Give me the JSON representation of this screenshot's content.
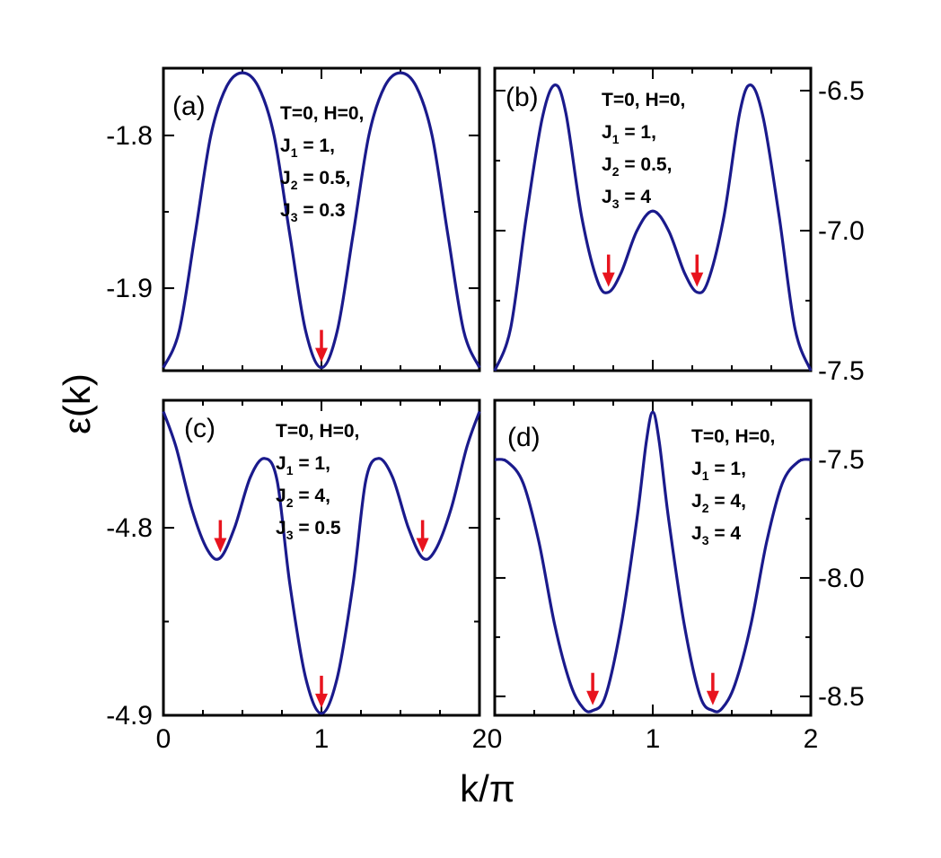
{
  "figure": {
    "ylabel": "ε(k)",
    "xlabel": "k/π",
    "curve_color": "#1a1a8c",
    "arrow_color": "#e8141e"
  },
  "chart_data": [
    {
      "type": "line",
      "panel": "(a)",
      "xlim": [
        0,
        2
      ],
      "ylim": [
        -1.954,
        -1.756
      ],
      "yticks": [
        -1.8,
        -1.9
      ],
      "ytick_labels": [
        "-1.8",
        "-1.9"
      ],
      "xticks": [
        0,
        1,
        2
      ],
      "xtick_labels": [
        "0",
        "1",
        "2"
      ],
      "params": [
        "T=0, H=0,",
        "J|1| = 1,",
        "J|2| = 0.5,",
        "J|3| = 0.3"
      ],
      "series": [
        {
          "x": [
            0,
            0.1,
            0.2,
            0.3,
            0.4,
            0.5,
            0.6,
            0.7,
            0.8,
            0.9,
            1.0,
            1.1,
            1.2,
            1.3,
            1.4,
            1.5,
            1.6,
            1.7,
            1.8,
            1.9,
            2.0
          ],
          "y": [
            -1.952,
            -1.928,
            -1.865,
            -1.8,
            -1.768,
            -1.759,
            -1.768,
            -1.8,
            -1.865,
            -1.928,
            -1.952,
            -1.928,
            -1.865,
            -1.8,
            -1.768,
            -1.759,
            -1.768,
            -1.8,
            -1.865,
            -1.928,
            -1.952
          ]
        }
      ],
      "minima_arrows": [
        1.0
      ]
    },
    {
      "type": "line",
      "panel": "(b)",
      "xlim": [
        0,
        2
      ],
      "ylim": [
        -7.5,
        -6.42
      ],
      "yticks": [
        -6.5,
        -7.0,
        -7.5
      ],
      "ytick_labels": [
        "-6.5",
        "-7.0",
        "-7.5"
      ],
      "xticks": [
        0,
        1,
        2
      ],
      "xtick_labels": [
        "0",
        "1",
        "2"
      ],
      "params": [
        "T=0, H=0,",
        "J|1| = 1,",
        "J|2| = 0.5,",
        "J|3| = 4"
      ],
      "series": [
        {
          "x": [
            0,
            0.1,
            0.2,
            0.3,
            0.38,
            0.45,
            0.55,
            0.65,
            0.72,
            0.8,
            0.9,
            1.0,
            1.1,
            1.2,
            1.28,
            1.35,
            1.45,
            1.55,
            1.62,
            1.7,
            1.8,
            1.9,
            2.0
          ],
          "y": [
            -7.5,
            -7.35,
            -6.95,
            -6.6,
            -6.48,
            -6.58,
            -6.95,
            -7.18,
            -7.22,
            -7.15,
            -7.0,
            -6.93,
            -7.0,
            -7.15,
            -7.22,
            -7.18,
            -6.95,
            -6.58,
            -6.48,
            -6.6,
            -6.95,
            -7.35,
            -7.5
          ]
        }
      ],
      "minima_arrows": [
        0.72,
        1.28
      ]
    },
    {
      "type": "line",
      "panel": "(c)",
      "xlim": [
        0,
        2
      ],
      "ylim": [
        -4.9,
        -4.732
      ],
      "yticks": [
        -4.8,
        -4.9
      ],
      "ytick_labels": [
        "-4.8",
        "-4.9"
      ],
      "xticks": [
        0,
        1,
        2
      ],
      "xtick_labels": [
        "0",
        "1",
        "2"
      ],
      "params": [
        "T=0, H=0,",
        "J|1| = 1,",
        "J|2| = 4,",
        "J|3| = 0.5"
      ],
      "series": [
        {
          "x": [
            0,
            0.08,
            0.18,
            0.28,
            0.36,
            0.45,
            0.55,
            0.64,
            0.72,
            0.8,
            0.9,
            1.0,
            1.1,
            1.2,
            1.28,
            1.36,
            1.45,
            1.55,
            1.64,
            1.72,
            1.82,
            1.92,
            2.0
          ],
          "y": [
            -4.738,
            -4.757,
            -4.79,
            -4.812,
            -4.816,
            -4.8,
            -4.773,
            -4.763,
            -4.775,
            -4.83,
            -4.88,
            -4.899,
            -4.88,
            -4.83,
            -4.775,
            -4.763,
            -4.773,
            -4.8,
            -4.816,
            -4.812,
            -4.79,
            -4.757,
            -4.738
          ]
        }
      ],
      "minima_arrows": [
        0.36,
        1.0,
        1.64
      ]
    },
    {
      "type": "line",
      "panel": "(d)",
      "xlim": [
        0,
        2
      ],
      "ylim": [
        -8.58,
        -7.25
      ],
      "yticks": [
        -7.5,
        -8.0,
        -8.5
      ],
      "ytick_labels": [
        "-7.5",
        "-8.0",
        "-8.5"
      ],
      "xticks": [
        0,
        1,
        2
      ],
      "xtick_labels": [
        "0",
        "1",
        "2"
      ],
      "params": [
        "T=0, H=0,",
        "J|1| = 1,",
        "J|2| = 4,",
        "J|3| = 4"
      ],
      "series": [
        {
          "x": [
            0,
            0.08,
            0.18,
            0.28,
            0.38,
            0.48,
            0.56,
            0.62,
            0.7,
            0.8,
            0.9,
            0.96,
            1.0,
            1.04,
            1.1,
            1.2,
            1.3,
            1.38,
            1.44,
            1.52,
            1.62,
            1.72,
            1.82,
            1.92,
            2.0
          ],
          "y": [
            -7.5,
            -7.51,
            -7.6,
            -7.85,
            -8.2,
            -8.45,
            -8.55,
            -8.56,
            -8.5,
            -8.2,
            -7.75,
            -7.42,
            -7.3,
            -7.42,
            -7.75,
            -8.2,
            -8.5,
            -8.56,
            -8.55,
            -8.45,
            -8.2,
            -7.85,
            -7.6,
            -7.51,
            -7.5
          ]
        }
      ],
      "minima_arrows": [
        0.62,
        1.38
      ]
    }
  ]
}
